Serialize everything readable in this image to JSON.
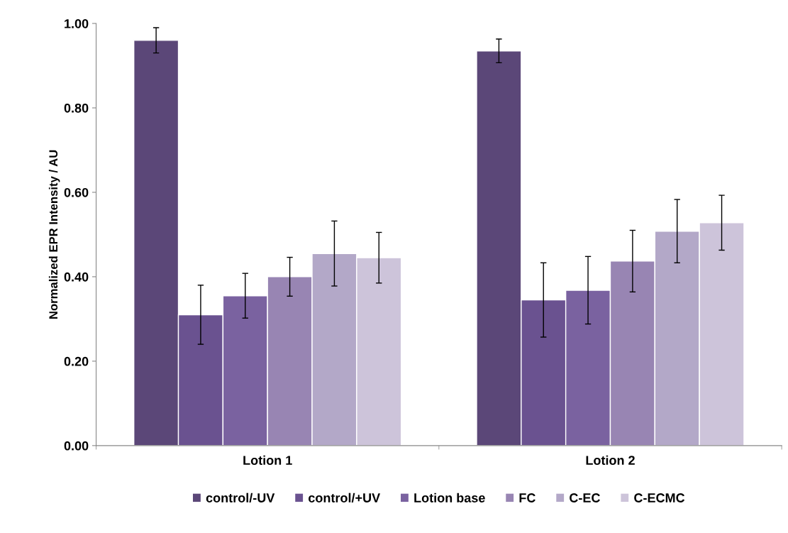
{
  "chart_data": {
    "type": "bar",
    "ylabel": "Normalized EPR Intensity / AU",
    "categories": [
      "Lotion 1",
      "Lotion 2"
    ],
    "ylim": [
      0,
      1
    ],
    "yticks": [
      {
        "value": 0,
        "label": "0.00"
      },
      {
        "value": 0.2,
        "label": "0.20"
      },
      {
        "value": 0.4,
        "label": "0.40"
      },
      {
        "value": 0.6,
        "label": "0.60"
      },
      {
        "value": 0.8,
        "label": "0.80"
      },
      {
        "value": 1,
        "label": "1.00"
      }
    ],
    "grid": false,
    "legend": "bottom",
    "series": [
      {
        "name": "control/-UV",
        "color": "#5b4778",
        "values": [
          0.96,
          0.935
        ],
        "errors": [
          0.03,
          0.028
        ]
      },
      {
        "name": "control/+UV",
        "color": "#6a5290",
        "values": [
          0.31,
          0.345
        ],
        "errors": [
          0.07,
          0.088
        ]
      },
      {
        "name": "Lotion base",
        "color": "#7a62a0",
        "values": [
          0.355,
          0.368
        ],
        "errors": [
          0.053,
          0.08
        ]
      },
      {
        "name": "FC",
        "color": "#9885b3",
        "values": [
          0.4,
          0.437
        ],
        "errors": [
          0.046,
          0.073
        ]
      },
      {
        "name": "C-EC",
        "color": "#b3a8c8",
        "values": [
          0.455,
          0.508
        ],
        "errors": [
          0.077,
          0.075
        ]
      },
      {
        "name": "C-ECMC",
        "color": "#cdc4da",
        "values": [
          0.445,
          0.528
        ],
        "errors": [
          0.06,
          0.065
        ]
      }
    ]
  }
}
